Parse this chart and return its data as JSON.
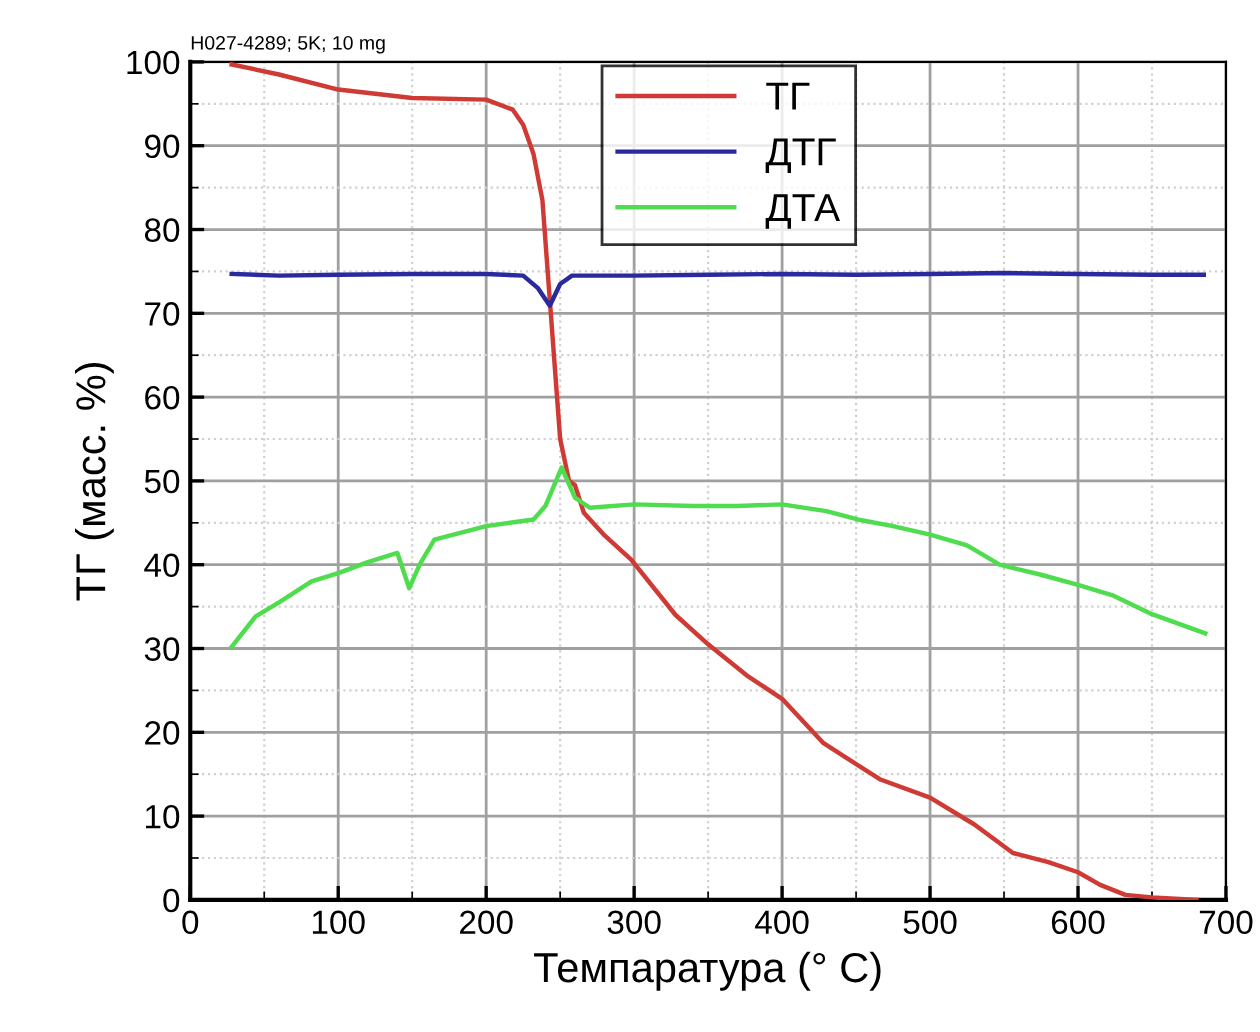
{
  "chart_data": {
    "type": "line",
    "xlabel": "Темпаратура (° C)",
    "ylabel": "ТГ (масс. %)",
    "annotations": [
      "H027-4289; 5K; 10 mg"
    ],
    "xlim": [
      0,
      700
    ],
    "ylim": [
      0,
      100
    ],
    "xticks": [
      0,
      100,
      200,
      300,
      400,
      500,
      600,
      700
    ],
    "yticks": [
      0,
      10,
      20,
      30,
      40,
      50,
      60,
      70,
      80,
      90,
      100
    ],
    "grid": true,
    "legend": "top",
    "marker": "none",
    "line_style": "solid",
    "series": [
      {
        "name": "ТГ",
        "color": "#d03a34",
        "x": [
          28,
          60,
          100,
          150,
          200,
          218,
          225,
          232,
          238,
          243,
          250,
          256,
          260,
          266,
          280,
          298,
          328,
          350,
          376,
          400,
          428,
          466,
          500,
          530,
          556,
          580,
          600,
          615,
          632,
          650,
          680
        ],
        "values": [
          99.7,
          98.5,
          96.7,
          95.7,
          95.5,
          94.3,
          92.5,
          89,
          83.5,
          71.6,
          55,
          50,
          49.5,
          46.2,
          43.5,
          40.6,
          34,
          30.5,
          26.8,
          24,
          18.7,
          14.4,
          12.2,
          9,
          5.6,
          4.5,
          3.3,
          1.8,
          0.6,
          0.3,
          0
        ]
      },
      {
        "name": "ДТГ",
        "color": "#2a2a9e",
        "x": [
          28,
          60,
          100,
          150,
          200,
          225,
          235,
          243,
          250,
          258,
          280,
          300,
          350,
          400,
          450,
          500,
          550,
          600,
          650,
          685
        ],
        "values": [
          74.7,
          74.5,
          74.6,
          74.7,
          74.7,
          74.5,
          73,
          70.9,
          73.5,
          74.5,
          74.5,
          74.5,
          74.6,
          74.7,
          74.6,
          74.7,
          74.8,
          74.7,
          74.6,
          74.6
        ]
      },
      {
        "name": "ДТА",
        "color": "#4fdc4f",
        "x": [
          28,
          44,
          60,
          82,
          100,
          120,
          140,
          148,
          155,
          165,
          200,
          232,
          240,
          251,
          260,
          270,
          300,
          340,
          370,
          400,
          430,
          451,
          475,
          500,
          525,
          547,
          575,
          600,
          624,
          650,
          686
        ],
        "values": [
          30.2,
          33.8,
          35.5,
          38,
          39,
          40.3,
          41.4,
          37.2,
          40,
          43,
          44.6,
          45.4,
          47,
          51.6,
          48,
          46.8,
          47.2,
          47,
          47,
          47.2,
          46.4,
          45.4,
          44.6,
          43.6,
          42.3,
          40,
          38.8,
          37.6,
          36.3,
          34.1,
          31.8
        ]
      }
    ]
  }
}
